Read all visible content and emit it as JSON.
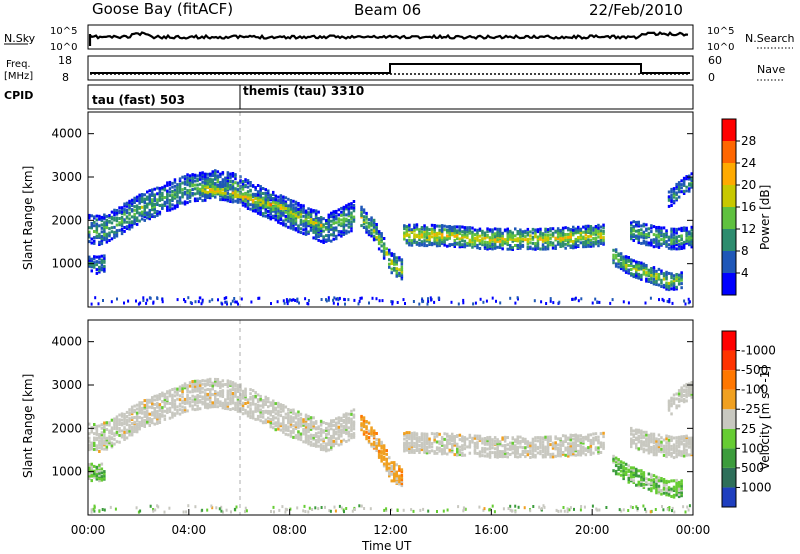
{
  "header": {
    "station": "Goose Bay (fitACF)",
    "beam": "Beam 06",
    "date": "22/Feb/2010"
  },
  "top_panels": {
    "nsky_label": "N.Sky",
    "nsky_ticks": [
      "10^5",
      "10^0"
    ],
    "nsearch_label": "N.Search",
    "nsearch_ticks": [
      "10^5",
      "10^0"
    ],
    "freq_label": "Freq.",
    "freq_unit": "[MHz]",
    "freq_ticks": [
      "18",
      "8"
    ],
    "nave_label": "Nave",
    "nave_ticks": [
      "60",
      "0"
    ],
    "cpid_label": "CPID",
    "cpid_segments": [
      {
        "label": "tau (fast) 503",
        "start_hour": 0,
        "end_hour": 6
      },
      {
        "label": "themis (tau) 3310",
        "start_hour": 6,
        "end_hour": 24
      }
    ]
  },
  "chart_data": [
    {
      "type": "heatmap",
      "title": "",
      "ylabel": "Slant Range [km]",
      "xlabel": "",
      "xlim": [
        0,
        24
      ],
      "ylim": [
        0,
        4500
      ],
      "y_ticks": [
        "1000",
        "2000",
        "3000",
        "4000"
      ],
      "colorbar": {
        "label": "Power [dB]",
        "ticks": [
          "4",
          "8",
          "12",
          "16",
          "20",
          "24",
          "28"
        ],
        "colors": [
          "#0000ff",
          "#1f57b8",
          "#2d8c6e",
          "#5fc13f",
          "#c8c800",
          "#ffaa00",
          "#ff6600",
          "#ff0000"
        ]
      },
      "bands": [
        {
          "name": "main",
          "points": [
            [
              0.0,
              1820
            ],
            [
              0.5,
              1800
            ],
            [
              1.0,
              1950
            ],
            [
              2.0,
              2300
            ],
            [
              3.0,
              2550
            ],
            [
              4.0,
              2780
            ],
            [
              5.0,
              2850
            ],
            [
              5.8,
              2780
            ],
            [
              6.6,
              2550
            ],
            [
              7.5,
              2300
            ],
            [
              8.5,
              2050
            ],
            [
              9.4,
              1820
            ],
            [
              10.0,
              2000
            ],
            [
              10.5,
              2150
            ]
          ],
          "width": 320,
          "intensity": 0.35
        },
        {
          "name": "hot-arc",
          "points": [
            [
              4.5,
              2750
            ],
            [
              5.5,
              2700
            ],
            [
              6.5,
              2500
            ],
            [
              7.5,
              2350
            ],
            [
              8.5,
              2100
            ],
            [
              9.2,
              1920
            ]
          ],
          "width": 140,
          "intensity": 0.65
        },
        {
          "name": "afternoon",
          "points": [
            [
              12.5,
              1700
            ],
            [
              14.0,
              1680
            ],
            [
              16.0,
              1600
            ],
            [
              18.0,
              1600
            ],
            [
              19.5,
              1650
            ],
            [
              20.5,
              1700
            ]
          ],
          "width": 240,
          "intensity": 0.6
        },
        {
          "name": "noon",
          "points": [
            [
              10.8,
              2100
            ],
            [
              11.3,
              1800
            ],
            [
              11.7,
              1400
            ],
            [
              12.0,
              1050
            ],
            [
              12.4,
              900
            ]
          ],
          "width": 220,
          "intensity": 0.5
        },
        {
          "name": "evening",
          "points": [
            [
              20.8,
              1200
            ],
            [
              21.5,
              950
            ],
            [
              22.2,
              800
            ],
            [
              23.0,
              620
            ],
            [
              23.6,
              660
            ]
          ],
          "width": 200,
          "intensity": 0.5
        },
        {
          "name": "evening-upper",
          "points": [
            [
              21.5,
              1800
            ],
            [
              22.5,
              1650
            ],
            [
              23.2,
              1600
            ],
            [
              24.0,
              1650
            ]
          ],
          "width": 220,
          "intensity": 0.35
        },
        {
          "name": "early",
          "points": [
            [
              0.0,
              1020
            ],
            [
              0.3,
              1000
            ],
            [
              0.6,
              1030
            ]
          ],
          "width": 180,
          "intensity": 0.25
        },
        {
          "name": "late-rise",
          "points": [
            [
              23.0,
              2500
            ],
            [
              23.5,
              2800
            ],
            [
              24.0,
              2950
            ]
          ],
          "width": 200,
          "intensity": 0.25
        }
      ]
    },
    {
      "type": "heatmap",
      "title": "",
      "ylabel": "Slant Range [km]",
      "xlabel": "Time UT",
      "xlim": [
        0,
        24
      ],
      "ylim": [
        0,
        4500
      ],
      "x_ticks": [
        "00:00",
        "04:00",
        "08:00",
        "12:00",
        "16:00",
        "20:00",
        "00:00"
      ],
      "y_ticks": [
        "1000",
        "2000",
        "3000",
        "4000"
      ],
      "colorbar": {
        "label": "Velocity [m s^-1]",
        "ticks": [
          "1000",
          "500",
          "100",
          "25",
          "-25",
          "-100",
          "-500",
          "-1000"
        ],
        "colors": [
          "#1f3fbf",
          "#2e6f5a",
          "#3c9c3c",
          "#66cc33",
          "#c8c8c0",
          "#f0a020",
          "#ff7700",
          "#ff3300",
          "#ff0000"
        ]
      },
      "bands": [
        {
          "name": "main",
          "points": [
            [
              0.0,
              1820
            ],
            [
              0.5,
              1800
            ],
            [
              1.0,
              1950
            ],
            [
              2.0,
              2300
            ],
            [
              3.0,
              2550
            ],
            [
              4.0,
              2780
            ],
            [
              5.0,
              2850
            ],
            [
              5.8,
              2780
            ],
            [
              6.6,
              2550
            ],
            [
              7.5,
              2300
            ],
            [
              8.5,
              2050
            ],
            [
              9.4,
              1820
            ],
            [
              10.0,
              2000
            ],
            [
              10.5,
              2150
            ]
          ],
          "width": 320,
          "class": "gray"
        },
        {
          "name": "afternoon",
          "points": [
            [
              12.5,
              1700
            ],
            [
              14.0,
              1680
            ],
            [
              16.0,
              1600
            ],
            [
              18.0,
              1600
            ],
            [
              19.5,
              1650
            ],
            [
              20.5,
              1700
            ]
          ],
          "width": 240,
          "class": "gray"
        },
        {
          "name": "noon",
          "points": [
            [
              10.8,
              2100
            ],
            [
              11.3,
              1800
            ],
            [
              11.7,
              1400
            ],
            [
              12.0,
              1050
            ],
            [
              12.4,
              900
            ]
          ],
          "width": 220,
          "class": "orange"
        },
        {
          "name": "evening",
          "points": [
            [
              20.8,
              1200
            ],
            [
              21.5,
              950
            ],
            [
              22.2,
              800
            ],
            [
              23.0,
              620
            ],
            [
              23.6,
              660
            ]
          ],
          "width": 200,
          "class": "green"
        },
        {
          "name": "evening-upper",
          "points": [
            [
              21.5,
              1800
            ],
            [
              22.5,
              1650
            ],
            [
              23.2,
              1600
            ],
            [
              24.0,
              1650
            ]
          ],
          "width": 220,
          "class": "gray"
        },
        {
          "name": "early",
          "points": [
            [
              0.0,
              1020
            ],
            [
              0.3,
              1000
            ],
            [
              0.6,
              1030
            ]
          ],
          "width": 180,
          "class": "green"
        },
        {
          "name": "late-rise",
          "points": [
            [
              23.0,
              2500
            ],
            [
              23.5,
              2800
            ],
            [
              24.0,
              2950
            ]
          ],
          "width": 200,
          "class": "gray"
        }
      ]
    }
  ]
}
